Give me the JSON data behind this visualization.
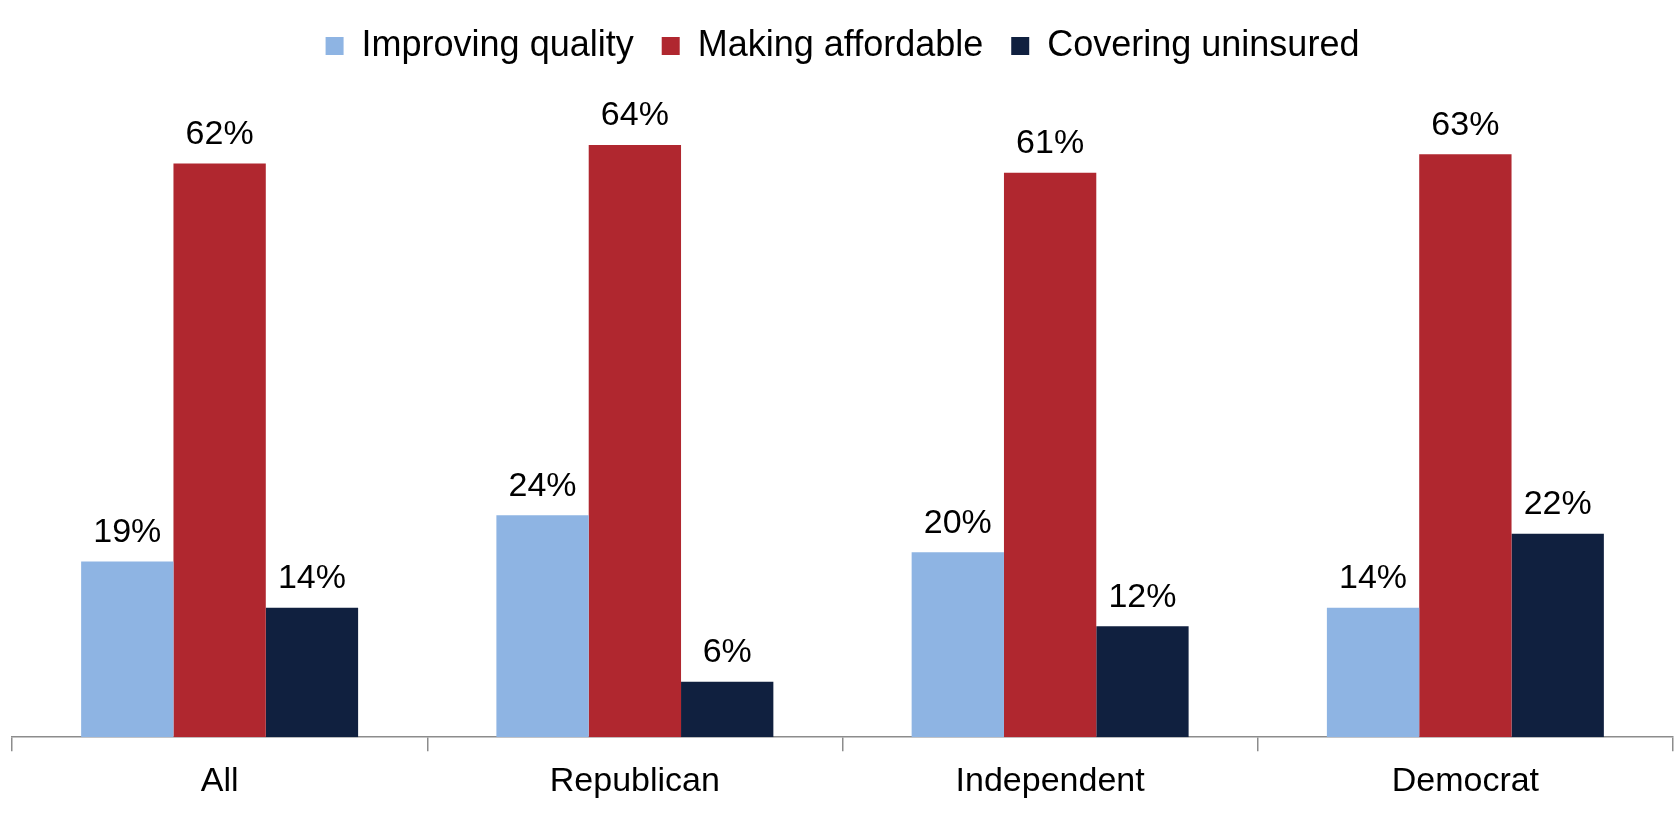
{
  "chart_data": {
    "type": "bar",
    "categories": [
      "All",
      "Republican",
      "Independent",
      "Democrat"
    ],
    "series": [
      {
        "name": "Improving quality",
        "color": "#8eb4e3",
        "values": [
          19,
          24,
          20,
          14
        ],
        "value_labels": [
          "19%",
          "24%",
          "20%",
          "14%"
        ]
      },
      {
        "name": "Making affordable",
        "color": "#b0272f",
        "values": [
          62,
          64,
          61,
          63
        ],
        "value_labels": [
          "62%",
          "64%",
          "61%",
          "63%"
        ]
      },
      {
        "name": "Covering uninsured",
        "color": "#10203f",
        "values": [
          14,
          6,
          12,
          22
        ],
        "value_labels": [
          "14%",
          "6%",
          "12%",
          "22%"
        ]
      }
    ],
    "legend": "top",
    "grid": false
  }
}
